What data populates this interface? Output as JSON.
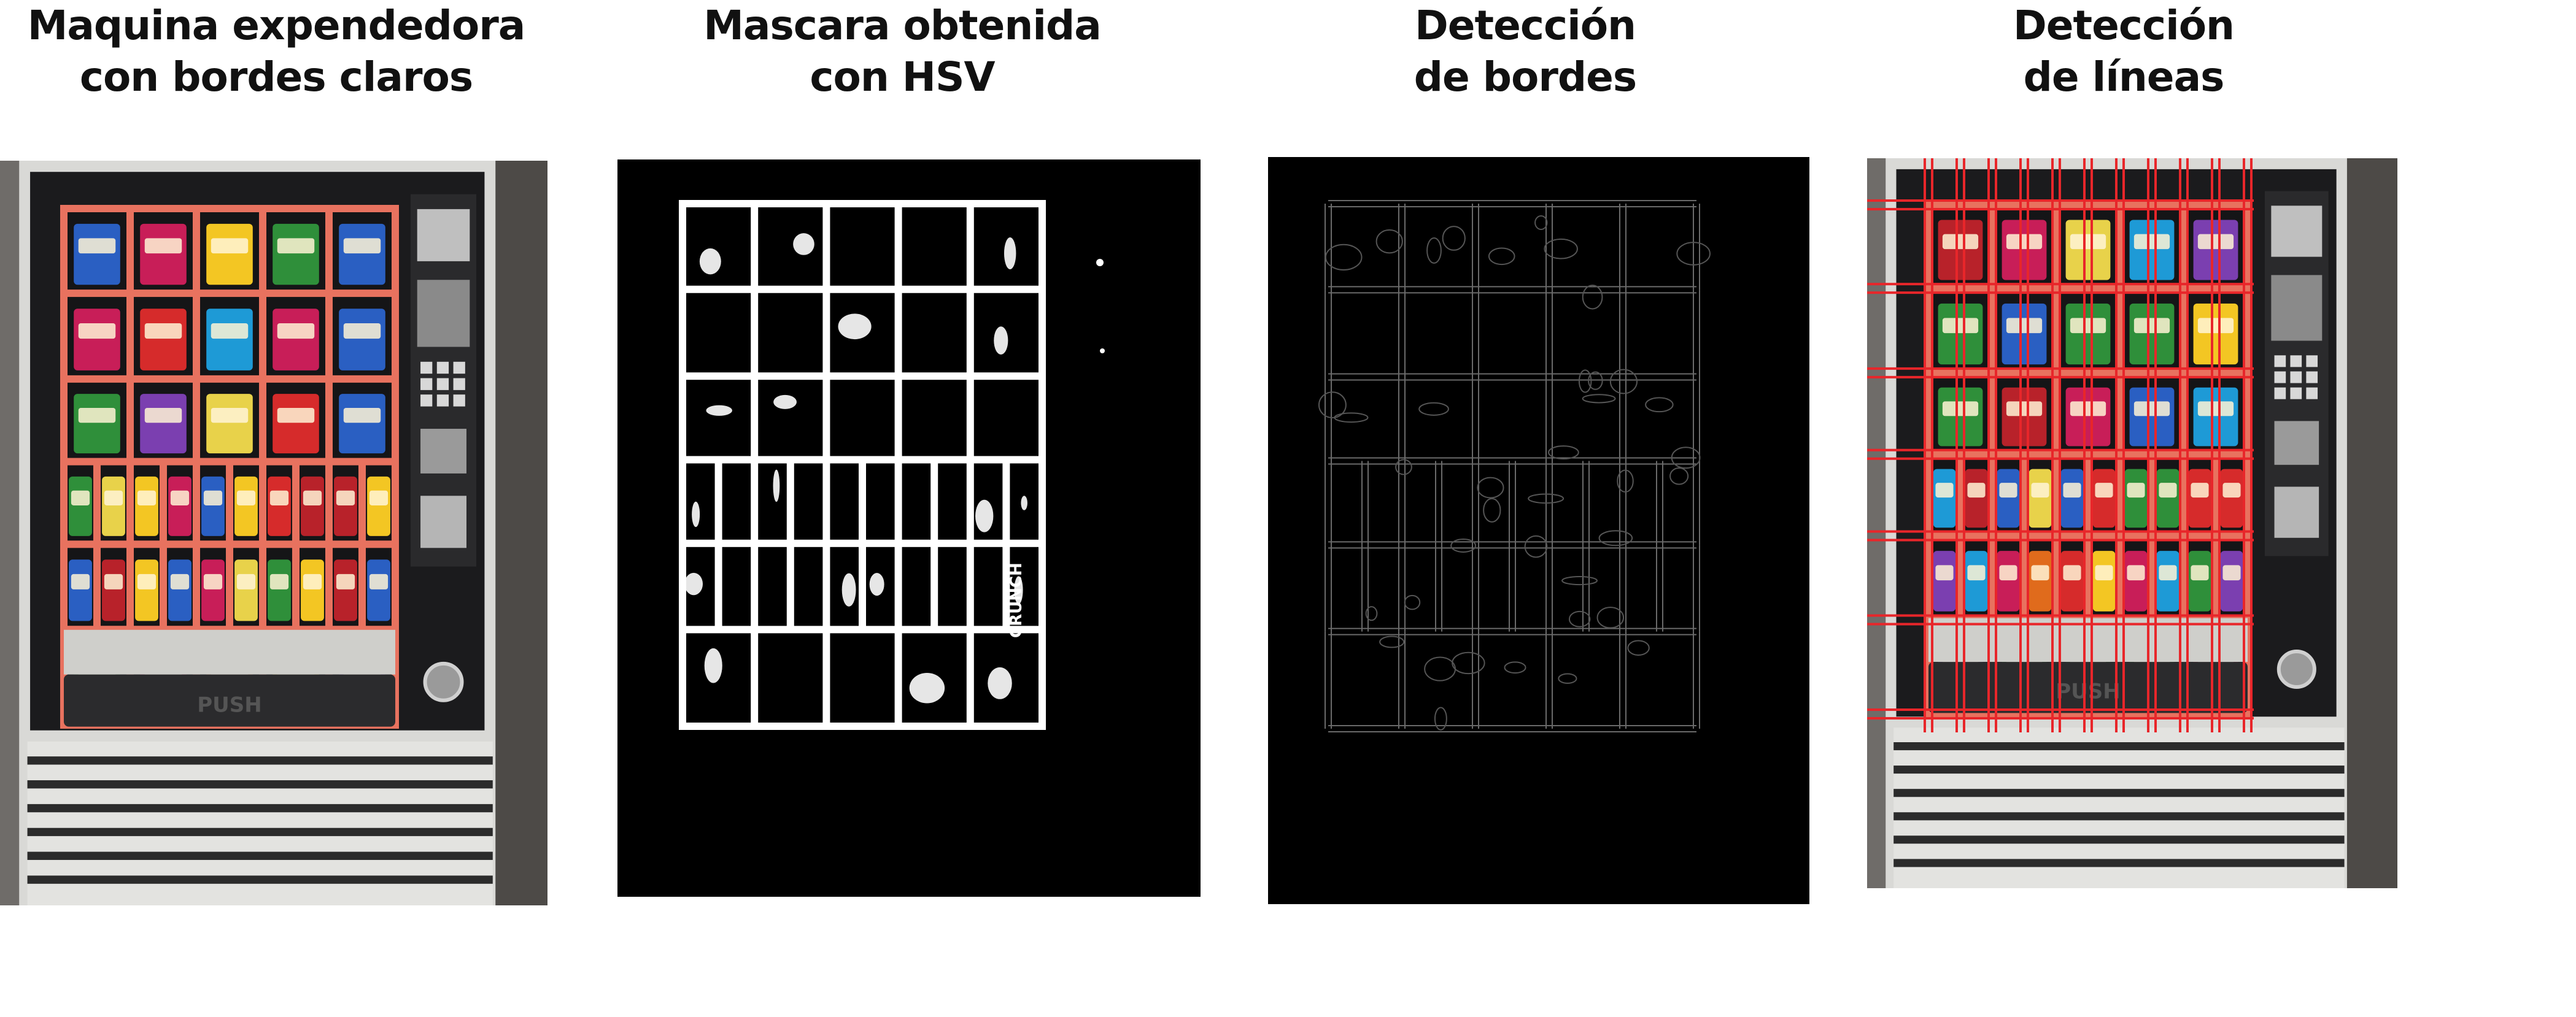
{
  "panels": [
    {
      "title": "Maquina expendedora\ncon bordes claros"
    },
    {
      "title": "Mascara obtenida\ncon HSV"
    },
    {
      "title": "Detección\nde bordes"
    },
    {
      "title": "Detección\nde líneas"
    }
  ],
  "machine_text": {
    "push": "PUSH",
    "crunch": "CRUNCH"
  },
  "colors": {
    "grid_highlight": "#e8725f",
    "detected_lines": "#e8262a",
    "mask_white": "#ffffff",
    "background": "#000000",
    "machine_body": "#1b1b1d"
  }
}
